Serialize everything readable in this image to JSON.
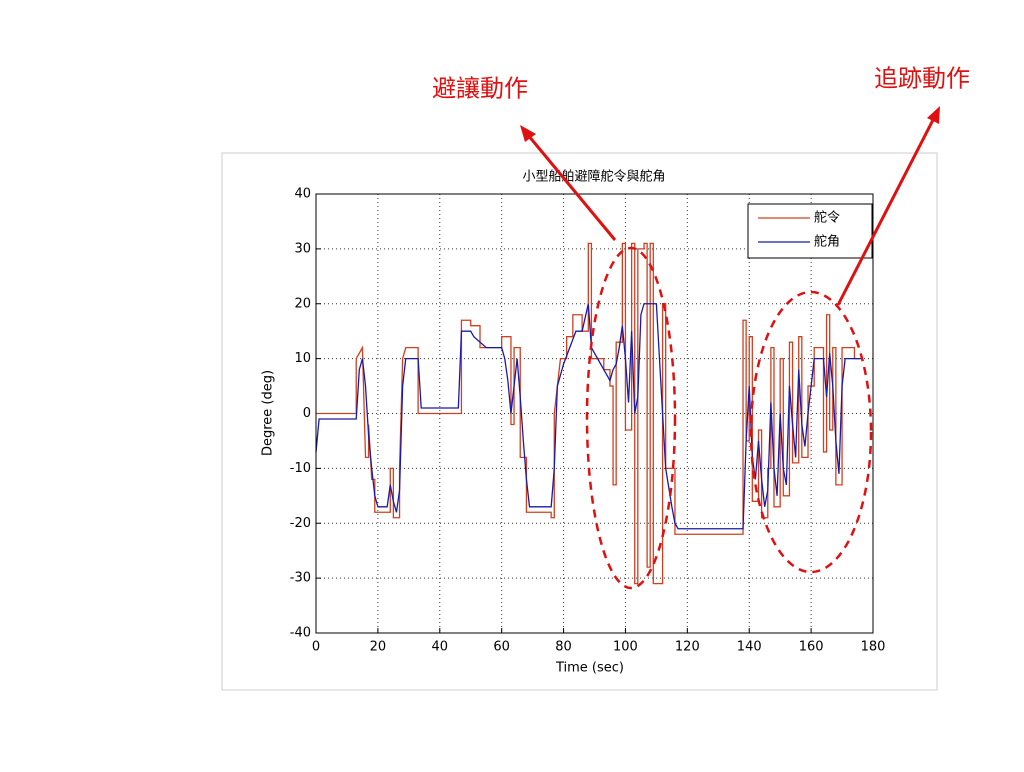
{
  "chart_data": {
    "type": "line",
    "title": "小型船舶避障舵令與舵角",
    "x_label": "Time (sec)",
    "y_label": "Degree (deg)",
    "xlim": [
      0,
      180
    ],
    "xticks": [
      0,
      20,
      40,
      60,
      80,
      100,
      120,
      140,
      160,
      180
    ],
    "ylim": [
      -40,
      40
    ],
    "yticks": [
      -40,
      -30,
      -20,
      -10,
      0,
      10,
      20,
      30,
      40
    ],
    "grid": true,
    "legend": "upper right",
    "annotations": [
      "避讓動作",
      "追跡動作"
    ],
    "series": [
      {
        "name": "舵令",
        "color": "#d04020",
        "x": [
          0,
          13,
          13,
          15,
          16,
          17,
          17,
          18,
          19,
          19,
          24,
          24,
          25,
          25,
          27,
          27,
          28,
          29,
          33,
          33,
          47,
          47,
          50,
          50,
          53,
          53,
          60,
          60,
          63,
          63,
          64,
          64,
          66,
          66,
          68,
          68,
          76,
          76,
          77,
          77,
          79,
          81,
          81,
          83,
          83,
          86,
          86,
          88,
          88,
          89,
          89,
          93,
          93,
          95,
          95,
          96,
          96,
          97,
          97,
          99,
          99,
          100,
          100,
          102,
          102,
          103,
          103,
          104,
          104,
          106,
          106,
          107,
          107,
          108,
          108,
          109,
          109,
          112,
          112,
          113,
          113,
          116,
          116,
          138,
          138,
          139,
          139,
          140,
          140,
          141,
          141,
          143,
          143,
          144,
          144,
          146,
          146,
          147,
          147,
          148,
          148,
          150,
          150,
          151,
          151,
          153,
          153,
          154,
          154,
          156,
          156,
          157,
          157,
          159,
          159,
          161,
          161,
          164,
          164,
          165,
          165,
          166,
          166,
          167,
          167,
          168,
          168,
          170,
          170,
          174,
          174,
          176
        ],
        "values": [
          0,
          0,
          10,
          12,
          -8,
          -8,
          -2,
          -12,
          -12,
          -18,
          -18,
          -10,
          -10,
          -19,
          -19,
          -10,
          10,
          12,
          12,
          0,
          0,
          17,
          17,
          16,
          16,
          12,
          12,
          14,
          14,
          -2,
          -2,
          12,
          12,
          -8,
          -8,
          -18,
          -18,
          -19,
          -19,
          0,
          10,
          10,
          14,
          14,
          18,
          18,
          15,
          15,
          31,
          31,
          10,
          10,
          8,
          8,
          5,
          5,
          -13,
          -13,
          13,
          13,
          31,
          31,
          -3,
          -3,
          31,
          31,
          -31,
          -31,
          30,
          30,
          31,
          31,
          -28,
          -28,
          31,
          31,
          -31,
          -31,
          20,
          20,
          -10,
          -10,
          -22,
          -22,
          17,
          17,
          -5,
          -5,
          14,
          14,
          -16,
          -16,
          -3,
          -3,
          -19,
          -19,
          -10,
          -10,
          12,
          12,
          -17,
          -17,
          10,
          10,
          -15,
          -15,
          13,
          13,
          -9,
          -9,
          14,
          14,
          -8,
          -8,
          5,
          5,
          12,
          12,
          -7,
          -7,
          18,
          18,
          -3,
          -3,
          12,
          12,
          -13,
          -13,
          12,
          12,
          10,
          10
        ]
      },
      {
        "name": "舵角",
        "color": "#1a1aa8",
        "x": [
          0,
          1,
          13,
          14,
          15,
          16,
          17,
          18,
          19,
          20,
          23,
          24,
          25,
          26,
          27,
          28,
          29,
          33,
          34,
          46,
          47,
          50,
          51,
          53,
          55,
          60,
          61,
          62,
          63,
          64,
          65,
          66,
          67,
          68,
          69,
          76,
          77,
          78,
          80,
          82,
          84,
          86,
          88,
          89,
          91,
          93,
          95,
          96,
          97,
          98,
          99,
          100,
          101,
          102,
          103,
          104,
          105,
          106,
          110,
          111,
          112,
          113,
          115,
          116,
          117,
          138,
          139,
          140,
          141,
          142,
          143,
          144,
          145,
          146,
          147,
          148,
          149,
          150,
          151,
          152,
          153,
          154,
          155,
          156,
          157,
          158,
          159,
          160,
          161,
          164,
          165,
          166,
          167,
          168,
          169,
          170,
          171,
          176
        ],
        "values": [
          -7,
          -1,
          -1,
          8,
          10,
          5,
          -4,
          -10,
          -15,
          -17,
          -17,
          -13,
          -16,
          -18,
          -14,
          5,
          10,
          10,
          1,
          1,
          15,
          15,
          14,
          13,
          12,
          12,
          10,
          6,
          0,
          5,
          10,
          3,
          -5,
          -12,
          -17,
          -17,
          -10,
          5,
          9,
          12,
          15,
          15,
          20,
          12,
          10,
          8,
          6,
          8,
          9,
          12,
          16,
          10,
          2,
          15,
          0,
          3,
          18,
          20,
          20,
          10,
          0,
          -10,
          -17,
          -20,
          -21,
          -21,
          -5,
          5,
          -8,
          -12,
          -5,
          -12,
          -17,
          -14,
          2,
          -10,
          -15,
          0,
          -10,
          -13,
          5,
          -2,
          -8,
          8,
          -2,
          -6,
          0,
          5,
          10,
          10,
          3,
          11,
          5,
          -5,
          -11,
          5,
          10,
          10
        ]
      }
    ]
  }
}
